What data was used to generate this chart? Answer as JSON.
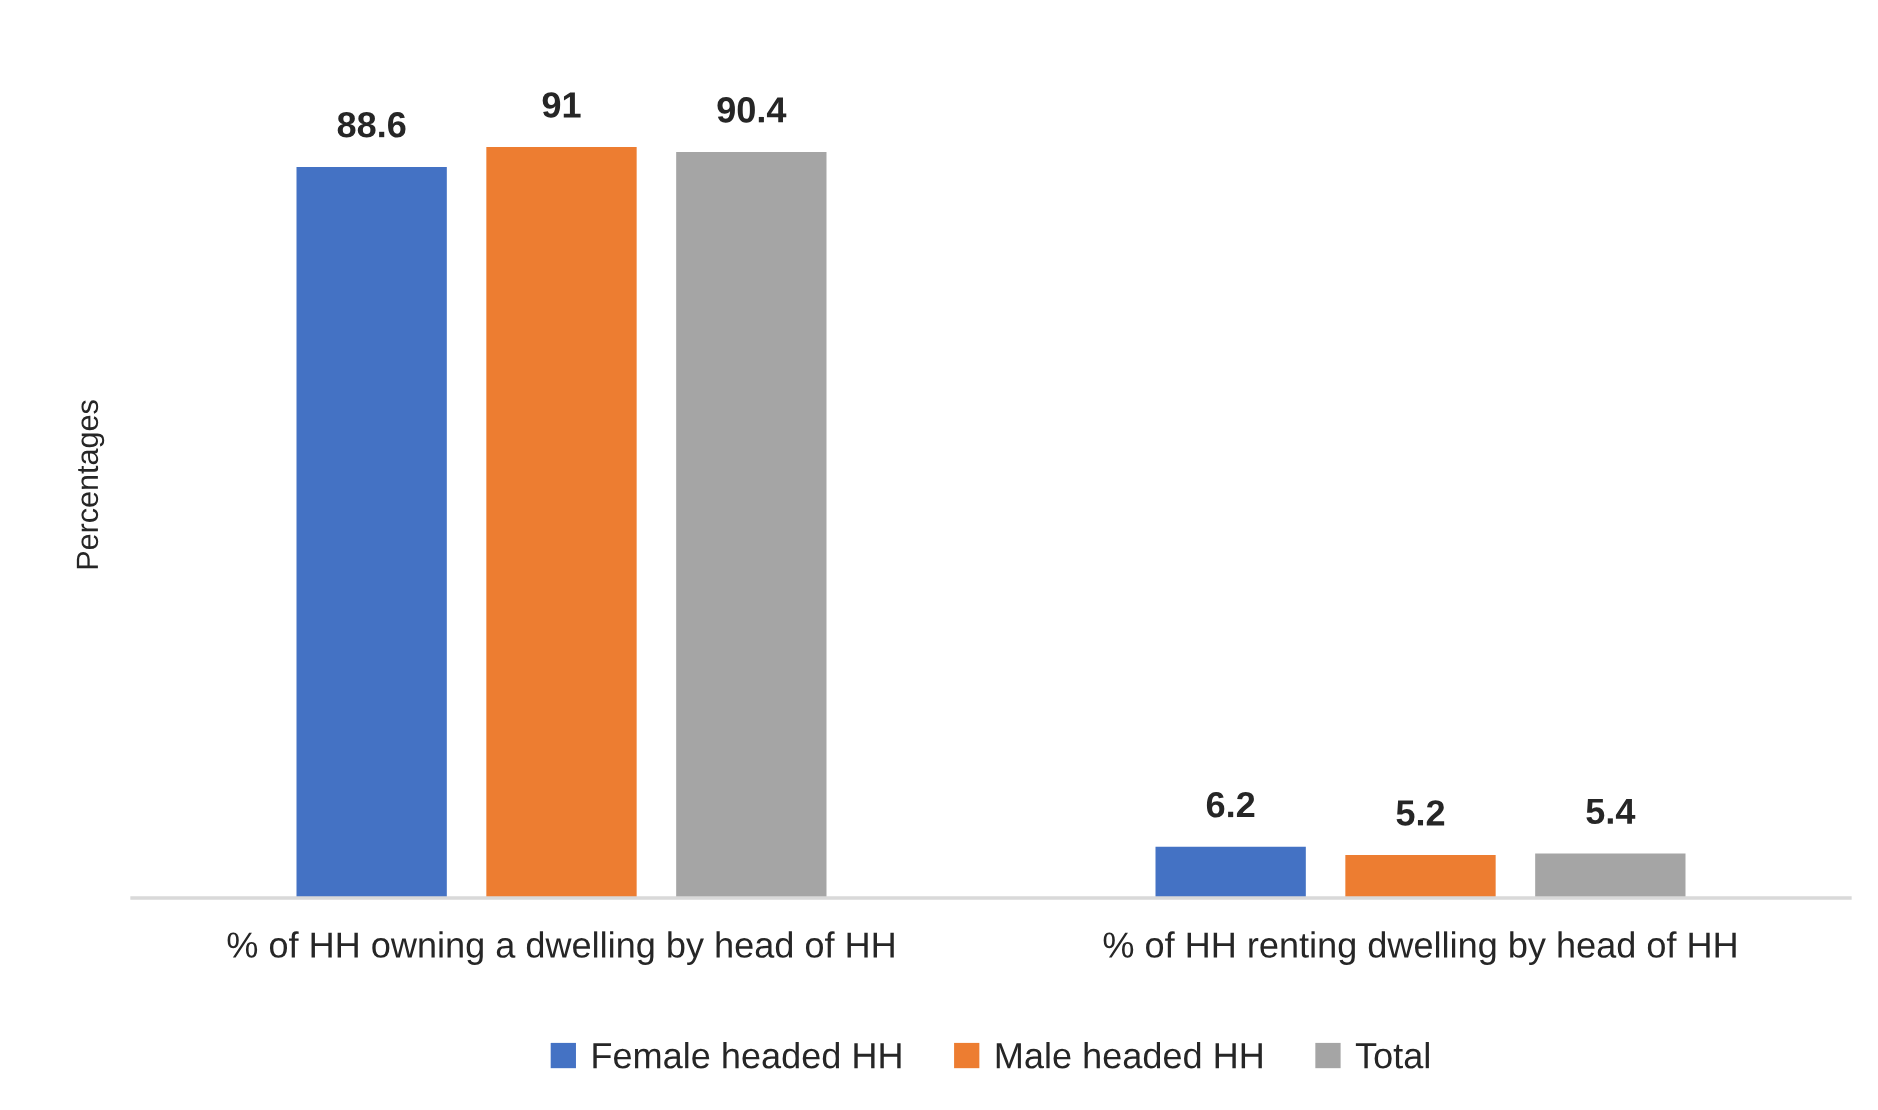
{
  "chart_data": {
    "type": "bar",
    "ylabel": "Percentages",
    "categories": [
      "% of HH owning a dwelling by head of HH",
      "% of HH renting dwelling by head of HH"
    ],
    "series": [
      {
        "name": "Female headed HH",
        "color": "#4472c4",
        "values": [
          88.6,
          6.2
        ]
      },
      {
        "name": "Male headed HH",
        "color": "#ed7d31",
        "values": [
          91,
          5.2
        ]
      },
      {
        "name": "Total",
        "color": "#a5a5a5",
        "values": [
          90.4,
          5.4
        ]
      }
    ],
    "data_labels": true,
    "legend": "bottom"
  }
}
